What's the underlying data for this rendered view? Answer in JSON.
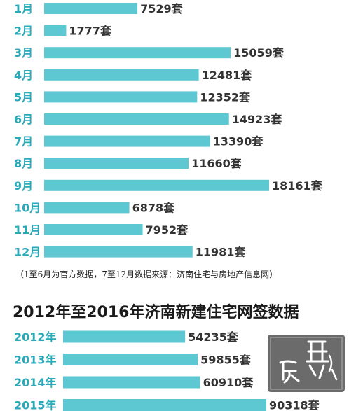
{
  "colors": {
    "bar": "#5ec8d2",
    "label": "#2aa9b8",
    "value": "#333333"
  },
  "chart_data": [
    {
      "type": "bar",
      "orientation": "horizontal",
      "categories": [
        "1月",
        "2月",
        "3月",
        "4月",
        "5月",
        "6月",
        "7月",
        "8月",
        "9月",
        "10月",
        "11月",
        "12月"
      ],
      "values": [
        7529,
        1777,
        15059,
        12481,
        12352,
        14923,
        13390,
        11660,
        18161,
        6878,
        7952,
        11981
      ],
      "value_labels": [
        "7529套",
        "1777套",
        "15059套",
        "12481套",
        "12352套",
        "14923套",
        "13390套",
        "11660套",
        "18161套",
        "6878套",
        "7952套",
        "11981套"
      ],
      "note": "（1至6月为官方数据，7至12月数据来源：济南住宅与房地产信息网）"
    },
    {
      "type": "bar",
      "orientation": "horizontal",
      "title": "2012年至2016年济南新建住宅网签数据",
      "categories": [
        "2012年",
        "2013年",
        "2014年",
        "2015年"
      ],
      "values": [
        54235,
        59855,
        60910,
        90318
      ],
      "value_labels": [
        "54235套",
        "59855套",
        "60910套",
        "90318套"
      ]
    }
  ]
}
